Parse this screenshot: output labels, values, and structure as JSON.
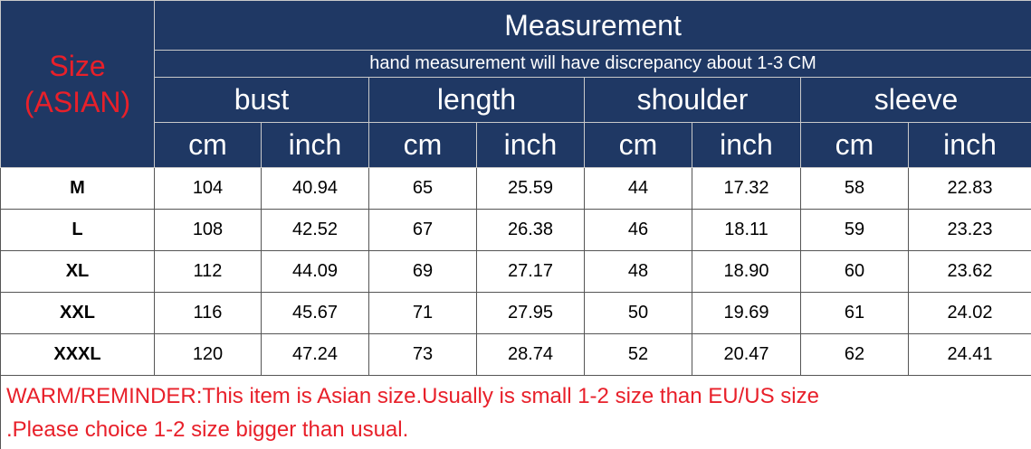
{
  "header": {
    "size_label": [
      "Size",
      "(ASIAN)"
    ],
    "title": "Measurement",
    "note": "hand measurement will have discrepancy about 1-3 CM"
  },
  "groups": [
    {
      "name": "bust",
      "units": [
        "cm",
        "inch"
      ]
    },
    {
      "name": "length",
      "units": [
        "cm",
        "inch"
      ]
    },
    {
      "name": "shoulder",
      "units": [
        "cm",
        "inch"
      ]
    },
    {
      "name": "sleeve",
      "units": [
        "cm",
        "inch"
      ]
    }
  ],
  "rows": [
    {
      "size": "M",
      "values": [
        "104",
        "40.94",
        "65",
        "25.59",
        "44",
        "17.32",
        "58",
        "22.83"
      ]
    },
    {
      "size": "L",
      "values": [
        "108",
        "42.52",
        "67",
        "26.38",
        "46",
        "18.11",
        "59",
        "23.23"
      ]
    },
    {
      "size": "XL",
      "values": [
        "112",
        "44.09",
        "69",
        "27.17",
        "48",
        "18.90",
        "60",
        "23.62"
      ]
    },
    {
      "size": "XXL",
      "values": [
        "116",
        "45.67",
        "71",
        "27.95",
        "50",
        "19.69",
        "61",
        "24.02"
      ]
    },
    {
      "size": "XXXL",
      "values": [
        "120",
        "47.24",
        "73",
        "28.74",
        "52",
        "20.47",
        "62",
        "24.41"
      ]
    }
  ],
  "warning": [
    "WARM/REMINDER:This item is Asian size.Usually is small 1-2 size than EU/US size",
    ".Please choice 1-2 size bigger than usual."
  ]
}
